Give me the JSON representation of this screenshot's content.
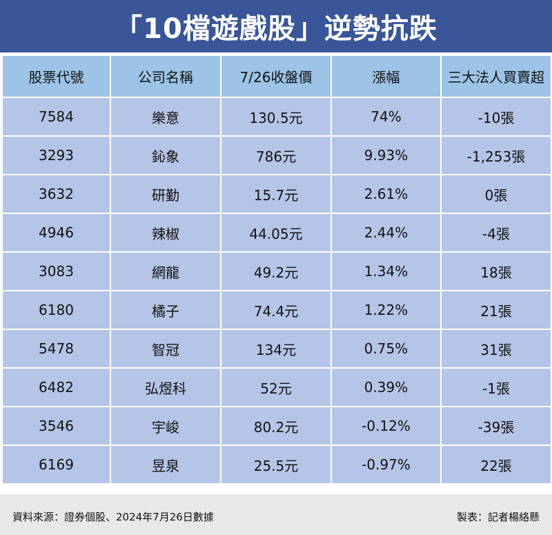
{
  "title": "「10檔遊戲股」逆勢抗跌",
  "table": {
    "headers": [
      "股票代號",
      "公司名稱",
      "7/26收盤價",
      "漲幅",
      "三大法人買賣超"
    ],
    "rows": [
      {
        "code": "7584",
        "name": "樂意",
        "close": "130.5元",
        "change": "74%",
        "net": "-10張"
      },
      {
        "code": "3293",
        "name": "鈊象",
        "close": "786元",
        "change": "9.93%",
        "net": "-1,253張"
      },
      {
        "code": "3632",
        "name": "研勤",
        "close": "15.7元",
        "change": "2.61%",
        "net": "0張"
      },
      {
        "code": "4946",
        "name": "辣椒",
        "close": "44.05元",
        "change": "2.44%",
        "net": "-4張"
      },
      {
        "code": "3083",
        "name": "網龍",
        "close": "49.2元",
        "change": "1.34%",
        "net": "18張"
      },
      {
        "code": "6180",
        "name": "橘子",
        "close": "74.4元",
        "change": "1.22%",
        "net": "21張"
      },
      {
        "code": "5478",
        "name": "智冠",
        "close": "134元",
        "change": "0.75%",
        "net": "31張"
      },
      {
        "code": "6482",
        "name": "弘煜科",
        "close": "52元",
        "change": "0.39%",
        "net": "-1張"
      },
      {
        "code": "3546",
        "name": "宇峻",
        "close": "80.2元",
        "change": "-0.12%",
        "net": "-39張"
      },
      {
        "code": "6169",
        "name": "昱泉",
        "close": "25.5元",
        "change": "-0.97%",
        "net": "22張"
      }
    ]
  },
  "footer": {
    "source": "資料來源：證券個股、2024年7月26日數據",
    "credit": "製表：記者楊絡懸"
  },
  "colors": {
    "title_bg": "#3a5598",
    "header_bg": "#9dc3e6",
    "row_bg": "#b4c5e7",
    "footer_bg": "#e8e8e8"
  }
}
